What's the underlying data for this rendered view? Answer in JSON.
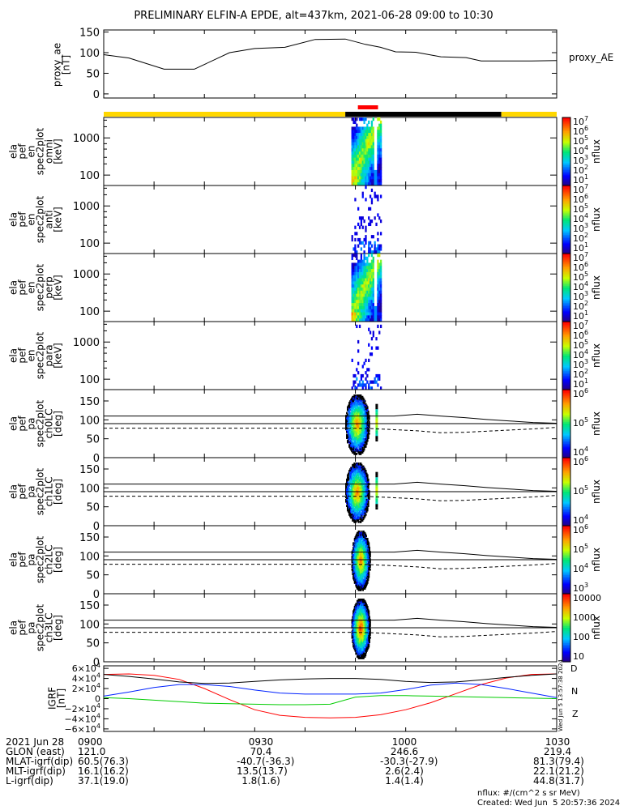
{
  "title": "PRELIMINARY ELFIN-A EPDE, alt=437km, 2021-06-28 09:00 to 10:30",
  "colors": {
    "red": "#ff0000",
    "gold": "#ffd700",
    "blue": "#0022ff",
    "green": "#00cc00",
    "black": "#000000"
  },
  "chart_data": [
    {
      "type": "line",
      "panel": "proxy_ae",
      "ylabel": [
        "proxy_ae",
        "[nT]"
      ],
      "legend": "proxy_AE",
      "ylim": [
        -10,
        155
      ],
      "yticks": [
        "150",
        "100",
        "50",
        "0"
      ],
      "x_minutes": [
        0,
        5,
        12,
        18,
        25,
        30,
        36,
        42,
        48,
        52,
        55,
        58,
        62,
        67,
        72,
        75,
        80,
        85,
        90
      ],
      "values": [
        95,
        87,
        60,
        60,
        100,
        110,
        113,
        132,
        133,
        120,
        113,
        102,
        101,
        90,
        88,
        80,
        80,
        80,
        81
      ]
    },
    {
      "type": "heatmap",
      "panel": "spec_omni",
      "ylabel": [
        "ela",
        "pef",
        "en",
        "spec2plot",
        "omni",
        "[keV]"
      ],
      "yticks": [
        "1000",
        "100"
      ],
      "colorbar": {
        "label": "nflux",
        "ticks": [
          "10^7",
          "10^6",
          "10^5",
          "10^4",
          "10^3",
          "10^2",
          "10^1"
        ]
      }
    },
    {
      "type": "heatmap",
      "panel": "spec_anti",
      "ylabel": [
        "ela",
        "pef",
        "en",
        "spec2plot",
        "anti",
        "[keV]"
      ],
      "yticks": [
        "1000",
        "100"
      ],
      "colorbar": {
        "label": "nflux",
        "ticks": [
          "10^7",
          "10^6",
          "10^5",
          "10^4",
          "10^3",
          "10^2",
          "10^1"
        ]
      }
    },
    {
      "type": "heatmap",
      "panel": "spec_perp",
      "ylabel": [
        "ela",
        "pef",
        "en",
        "spec2plot",
        "perp",
        "[keV]"
      ],
      "yticks": [
        "1000",
        "100"
      ],
      "colorbar": {
        "label": "nflux",
        "ticks": [
          "10^7",
          "10^6",
          "10^5",
          "10^4",
          "10^3",
          "10^2",
          "10^1"
        ]
      }
    },
    {
      "type": "heatmap",
      "panel": "spec_para",
      "ylabel": [
        "ela",
        "pef",
        "en",
        "spec2plot",
        "para",
        "[keV]"
      ],
      "yticks": [
        "1000",
        "100"
      ],
      "colorbar": {
        "label": "nflux",
        "ticks": [
          "10^7",
          "10^6",
          "10^5",
          "10^4",
          "10^3",
          "10^2",
          "10^1"
        ]
      }
    },
    {
      "type": "heatmap",
      "panel": "pa_ch0LC",
      "ylabel": [
        "ela",
        "pef",
        "pa",
        "spec2plot",
        "ch0LC",
        "[deg]"
      ],
      "yticks": [
        "150",
        "100",
        "50",
        "0"
      ],
      "colorbar": {
        "label": "nflux",
        "ticks": [
          "10^6",
          "10^5",
          "10^4"
        ]
      }
    },
    {
      "type": "heatmap",
      "panel": "pa_ch1LC",
      "ylabel": [
        "ela",
        "pef",
        "pa",
        "spec2plot",
        "ch1LC",
        "[deg]"
      ],
      "yticks": [
        "150",
        "100",
        "50",
        "0"
      ],
      "colorbar": {
        "label": "nflux",
        "ticks": [
          "10^6",
          "10^5",
          "10^4"
        ]
      }
    },
    {
      "type": "heatmap",
      "panel": "pa_ch2LC",
      "ylabel": [
        "ela",
        "pef",
        "pa",
        "spec2plot",
        "ch2LC",
        "[deg]"
      ],
      "yticks": [
        "150",
        "100",
        "50",
        "0"
      ],
      "colorbar": {
        "label": "nflux",
        "ticks": [
          "10^6",
          "10^5",
          "10^4",
          "10^3"
        ]
      }
    },
    {
      "type": "heatmap",
      "panel": "pa_ch3LC",
      "ylabel": [
        "ela",
        "pef",
        "pa",
        "spec2plot",
        "ch3LC",
        "[deg]"
      ],
      "yticks": [
        "150",
        "100",
        "50",
        "0"
      ],
      "colorbar": {
        "label": "nflux",
        "ticks": [
          "10000",
          "1000",
          "100",
          "10"
        ]
      }
    },
    {
      "type": "line",
      "panel": "igrf",
      "ylabel": [
        "IGRF",
        "[nT]"
      ],
      "yticks": [
        "6×10^4",
        "4×10^4",
        "2×10^4",
        "0",
        "−2×10^4",
        "−4×10^4",
        "−6×10^4"
      ],
      "ylim": [
        -65000,
        65000
      ],
      "legend": [
        "D",
        "N",
        "Z"
      ],
      "x_minutes": [
        0,
        5,
        10,
        15,
        20,
        25,
        30,
        35,
        40,
        45,
        50,
        55,
        60,
        65,
        70,
        75,
        80,
        85,
        90
      ],
      "series": [
        {
          "name": "D",
          "color": "red",
          "values": [
            48000,
            49000,
            46000,
            38000,
            20000,
            -2000,
            -22000,
            -33000,
            -37000,
            -38000,
            -37000,
            -32000,
            -22000,
            -8000,
            10000,
            28000,
            41000,
            48000,
            49000
          ]
        },
        {
          "name": "N",
          "color": "blue",
          "values": [
            5000,
            13000,
            22000,
            28000,
            28000,
            24000,
            17000,
            11000,
            9000,
            9000,
            9000,
            11000,
            18000,
            27000,
            31000,
            28000,
            20000,
            11000,
            2000
          ]
        },
        {
          "name": "Z",
          "color": "green",
          "values": [
            2000,
            0,
            -3000,
            -6000,
            -9000,
            -10000,
            -11000,
            -12000,
            -12000,
            -11000,
            3000,
            6000,
            6000,
            5000,
            4000,
            3000,
            2000,
            1000,
            0
          ]
        },
        {
          "name": "",
          "color": "black",
          "values": [
            48000,
            44000,
            39000,
            33000,
            30000,
            31000,
            34000,
            37000,
            39000,
            40000,
            40000,
            38000,
            34000,
            32000,
            33000,
            37000,
            42000,
            46000,
            49000
          ]
        }
      ]
    }
  ],
  "orbit_bar": {
    "segments": [
      {
        "from": 0,
        "to": 48,
        "color": "gold"
      },
      {
        "from": 48,
        "to": 79,
        "color": "black"
      },
      {
        "from": 79,
        "to": 90,
        "color": "gold"
      }
    ],
    "science": {
      "from": 50.5,
      "to": 54.5,
      "color": "red"
    }
  },
  "pa_lines": {
    "upper": [
      110,
      110,
      110,
      115,
      110,
      106,
      101,
      97,
      93,
      91
    ],
    "middle": [
      90,
      90,
      90,
      90,
      90,
      90,
      90,
      90,
      90,
      90
    ],
    "dashed": [
      78,
      77,
      74,
      71,
      66,
      67,
      70,
      73,
      76,
      80
    ]
  },
  "footer": {
    "rows": [
      {
        "label": "2021 Jun 28",
        "values": [
          "0900",
          "0930",
          "1000",
          "1030"
        ]
      },
      {
        "label": "GLON (east)",
        "values": [
          "121.0",
          "70.4",
          "246.6",
          "219.4"
        ]
      },
      {
        "label": "MLAT-igrf(dip)",
        "values": [
          "60.5(76.3)",
          "-40.7(-36.3)",
          "-30.3(-27.9)",
          "81.3(79.4)"
        ]
      },
      {
        "label": "MLT-igrf(dip)",
        "values": [
          "16.1(16.2)",
          "13.5(13.7)",
          "2.6(2.4)",
          "22.1(21.2)"
        ]
      },
      {
        "label": "L-igrf(dip)",
        "values": [
          "37.1(19.0)",
          "1.8(1.6)",
          "1.4(1.4)",
          "44.8(31.7)"
        ]
      }
    ],
    "units": "nflux: #/(cm^2 s sr MeV)",
    "created": "Created: Wed Jun  5 20:57:36 2024",
    "side_stamp": "Wed Jun  5 13:57:38 2024"
  }
}
